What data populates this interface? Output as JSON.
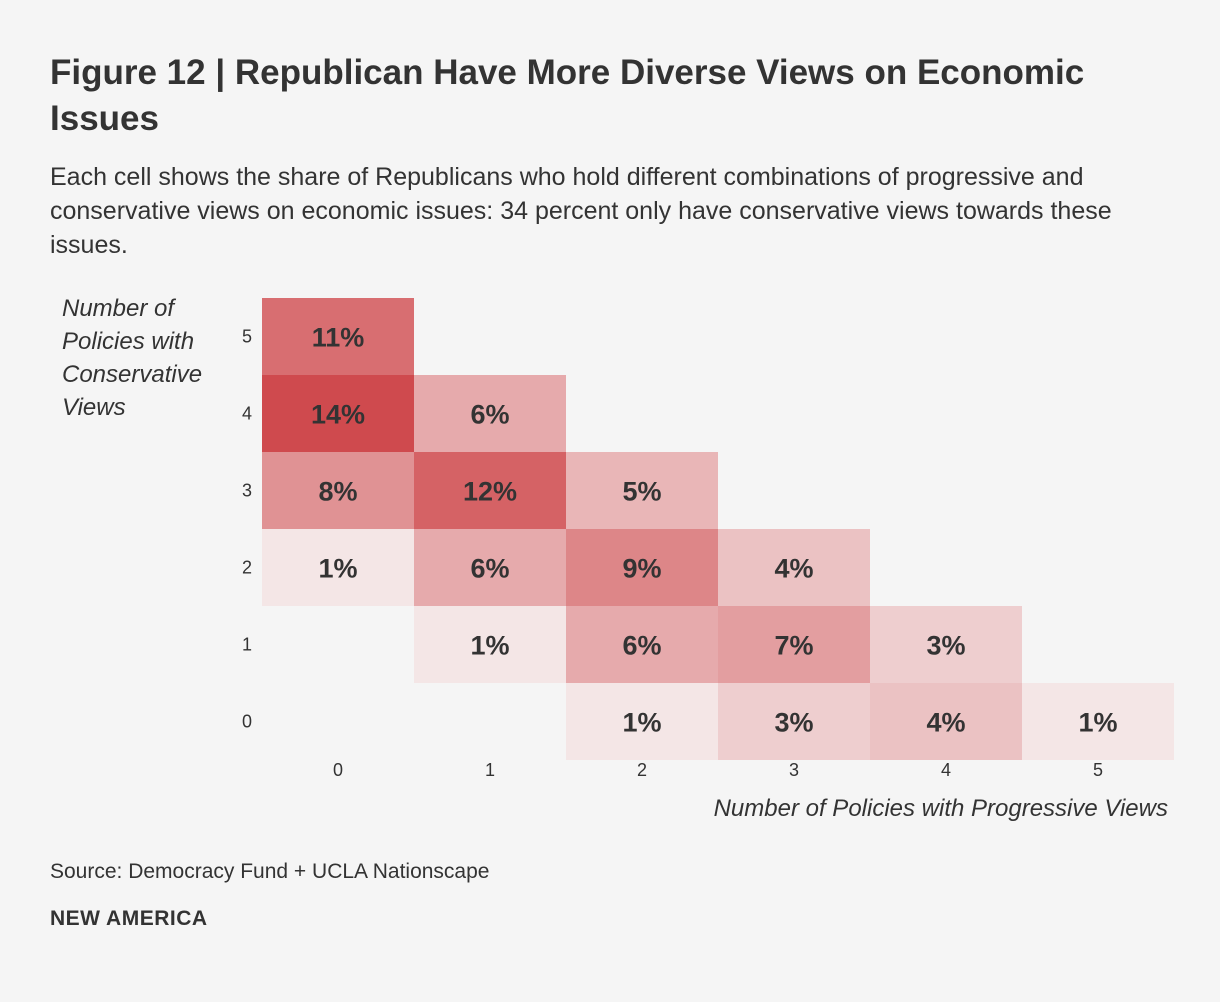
{
  "chart_data": {
    "type": "heatmap",
    "title": "Figure 12 | Republican Have More Diverse Views on Economic Issues",
    "subtitle": "Each cell shows the share of Republicans who hold different combinations of progressive and conservative views on economic issues: 34 percent only have conservative views towards these issues.",
    "xlabel": "Number of Policies with Progressive Views",
    "ylabel": "Number of Policies with Conservative Views",
    "x_categories": [
      "0",
      "1",
      "2",
      "3",
      "4",
      "5"
    ],
    "y_categories": [
      "5",
      "4",
      "3",
      "2",
      "1",
      "0"
    ],
    "cells": [
      {
        "x": 0,
        "y": 5,
        "value": 11,
        "label": "11%"
      },
      {
        "x": 0,
        "y": 4,
        "value": 14,
        "label": "14%"
      },
      {
        "x": 1,
        "y": 4,
        "value": 6,
        "label": "6%"
      },
      {
        "x": 0,
        "y": 3,
        "value": 8,
        "label": "8%"
      },
      {
        "x": 1,
        "y": 3,
        "value": 12,
        "label": "12%"
      },
      {
        "x": 2,
        "y": 3,
        "value": 5,
        "label": "5%"
      },
      {
        "x": 0,
        "y": 2,
        "value": 1,
        "label": "1%"
      },
      {
        "x": 1,
        "y": 2,
        "value": 6,
        "label": "6%"
      },
      {
        "x": 2,
        "y": 2,
        "value": 9,
        "label": "9%"
      },
      {
        "x": 3,
        "y": 2,
        "value": 4,
        "label": "4%"
      },
      {
        "x": 1,
        "y": 1,
        "value": 1,
        "label": "1%"
      },
      {
        "x": 2,
        "y": 1,
        "value": 6,
        "label": "6%"
      },
      {
        "x": 3,
        "y": 1,
        "value": 7,
        "label": "7%"
      },
      {
        "x": 4,
        "y": 1,
        "value": 3,
        "label": "3%"
      },
      {
        "x": 2,
        "y": 0,
        "value": 1,
        "label": "1%"
      },
      {
        "x": 3,
        "y": 0,
        "value": 3,
        "label": "3%"
      },
      {
        "x": 4,
        "y": 0,
        "value": 4,
        "label": "4%"
      },
      {
        "x": 5,
        "y": 0,
        "value": 1,
        "label": "1%"
      }
    ],
    "color_low": "#f4e6e6",
    "color_high": "#cf4a4e",
    "grid": false
  },
  "footer": {
    "source": "Source: Democracy Fund + UCLA Nationscape",
    "brand": "NEW AMERICA"
  }
}
